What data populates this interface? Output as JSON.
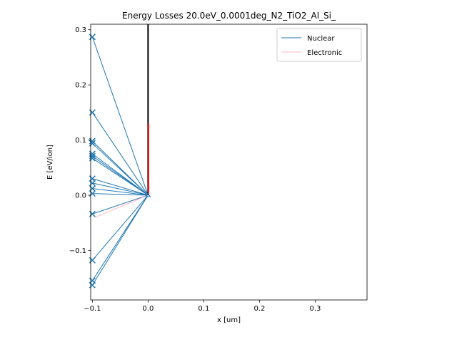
{
  "chart_data": {
    "type": "line",
    "title": "Energy Losses 20.0eV_0.0001deg_N2_TiO2_Al_Si_",
    "xlabel": "x [um]",
    "ylabel": "E [eV/ion]",
    "xlim": [
      -0.103,
      0.393
    ],
    "ylim": [
      -0.19,
      0.31
    ],
    "xticks": [
      {
        "value": -0.1,
        "label": "−0.1"
      },
      {
        "value": 0.0,
        "label": "0.0"
      },
      {
        "value": 0.1,
        "label": "0.1"
      },
      {
        "value": 0.2,
        "label": "0.2"
      },
      {
        "value": 0.3,
        "label": "0.3"
      }
    ],
    "yticks": [
      {
        "value": -0.1,
        "label": "−0.1"
      },
      {
        "value": 0.0,
        "label": "0.0"
      },
      {
        "value": 0.1,
        "label": "0.1"
      },
      {
        "value": 0.2,
        "label": "0.2"
      },
      {
        "value": 0.3,
        "label": "0.3"
      }
    ],
    "grid": false,
    "legend": {
      "position": "top-right",
      "entries": [
        {
          "name": "Nuclear",
          "color": "#1f77b4"
        },
        {
          "name": "Electronic",
          "color": "#ffb6c1"
        }
      ]
    },
    "series": [
      {
        "name": "Nuclear",
        "color": "#1f77b4",
        "origin": [
          0.0,
          0.0
        ],
        "endpoints_x": -0.1,
        "endpoints_y": [
          0.287,
          0.15,
          0.098,
          0.094,
          0.075,
          0.071,
          0.067,
          0.03,
          0.022,
          0.012,
          0.003,
          -0.034,
          -0.118,
          -0.155,
          -0.163
        ]
      },
      {
        "name": "Electronic",
        "color": "#ffb6c1",
        "points": [
          [
            0.0,
            0.0
          ],
          [
            -0.095,
            -0.04
          ]
        ]
      },
      {
        "name": "boundary",
        "color": "#000000",
        "x": 0.0,
        "y_range": [
          0.0,
          0.31
        ]
      },
      {
        "name": "deposition",
        "color": "#ff0000",
        "x": 0.0,
        "y_range": [
          0.0,
          0.13
        ]
      }
    ]
  }
}
